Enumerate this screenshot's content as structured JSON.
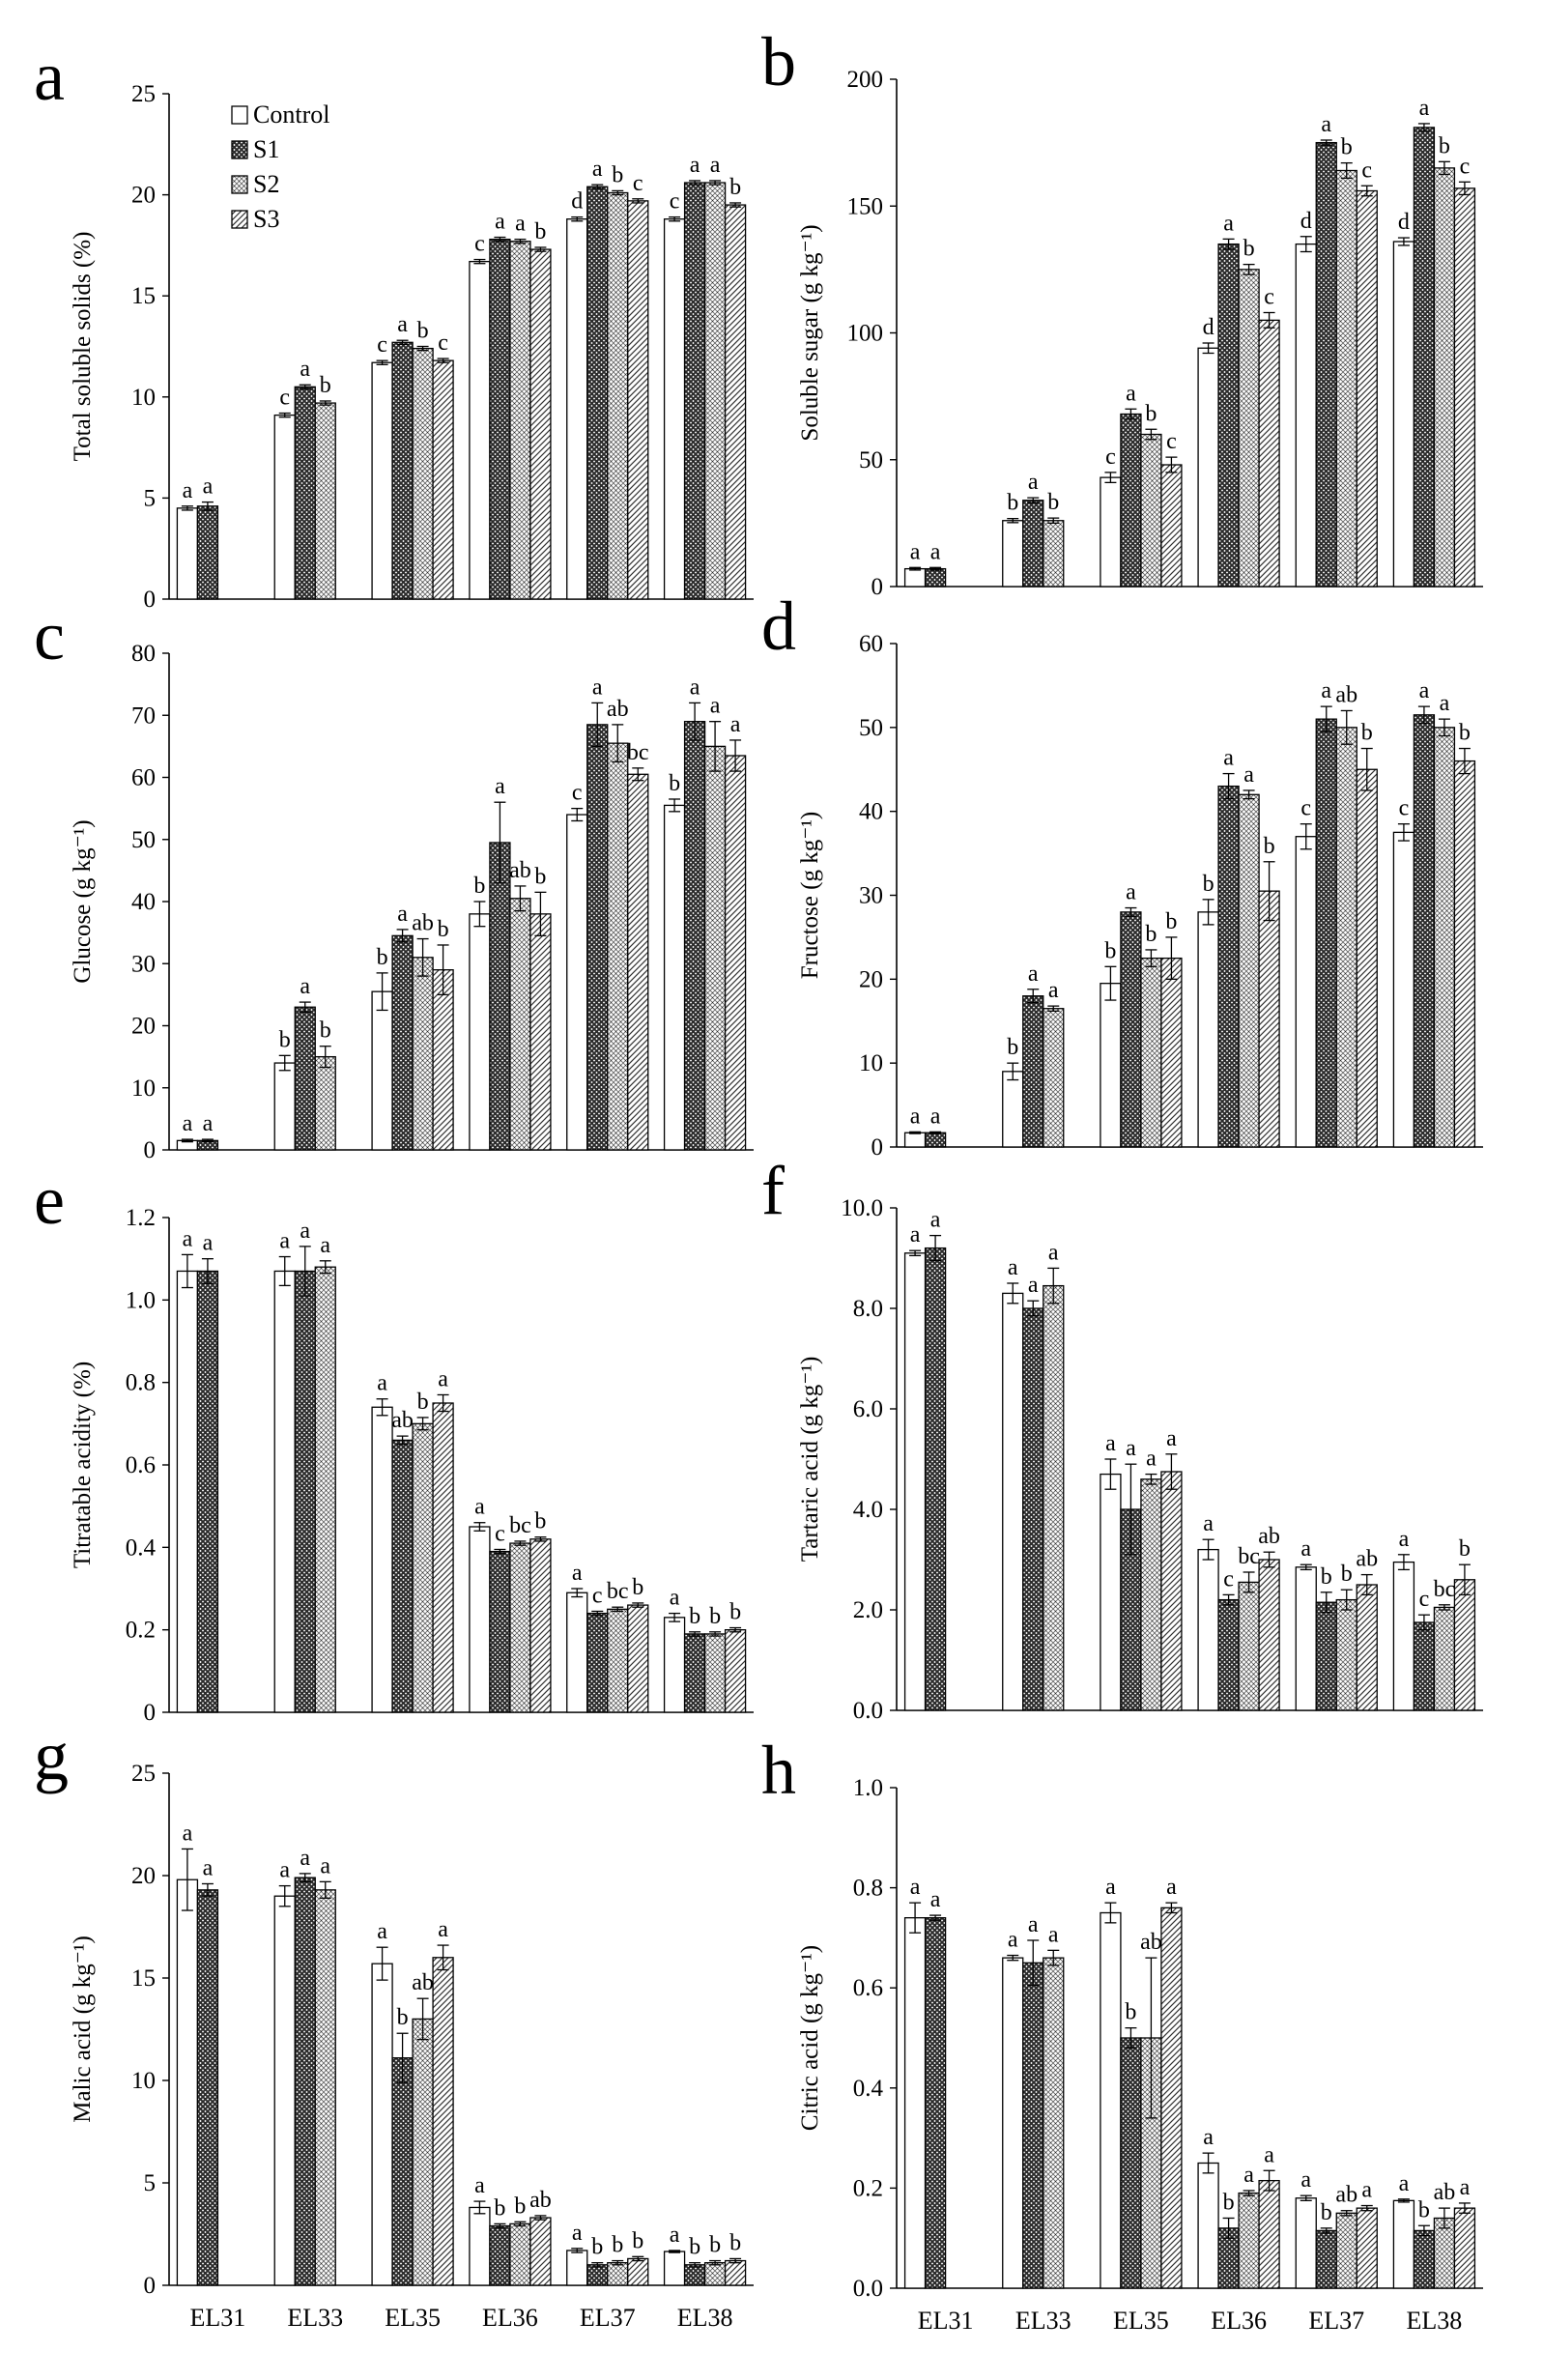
{
  "categories": [
    "EL31",
    "EL33",
    "EL35",
    "EL36",
    "EL37",
    "EL38"
  ],
  "legend": [
    "Control",
    "S1",
    "S2",
    "S3"
  ],
  "chart_data": [
    {
      "panel": "a",
      "type": "bar",
      "ylabel": "Total soluble solids (%)",
      "ylim": [
        0,
        25
      ],
      "ticks": [
        "0",
        "5",
        "10",
        "15",
        "20",
        "25"
      ],
      "legend": "top-left",
      "categories": [
        "EL31",
        "EL33",
        "EL35",
        "EL36",
        "EL37",
        "EL38"
      ],
      "series": [
        {
          "name": "Control",
          "values": [
            4.5,
            9.1,
            11.7,
            16.7,
            18.8,
            18.8
          ],
          "errors": [
            0.1,
            0.1,
            0.1,
            0.1,
            0.1,
            0.1
          ],
          "letters": [
            "a",
            "c",
            "c",
            "c",
            "d",
            "c"
          ]
        },
        {
          "name": "S1",
          "values": [
            4.6,
            10.5,
            12.7,
            17.8,
            20.4,
            20.6
          ],
          "errors": [
            0.2,
            0.1,
            0.1,
            0.1,
            0.1,
            0.1
          ],
          "letters": [
            "a",
            "a",
            "a",
            "a",
            "a",
            "a"
          ]
        },
        {
          "name": "S2",
          "values": [
            null,
            9.7,
            12.4,
            17.7,
            20.1,
            20.6
          ],
          "errors": [
            null,
            0.1,
            0.1,
            0.1,
            0.1,
            0.1
          ],
          "letters": [
            "",
            "b",
            "b",
            "a",
            "b",
            "a"
          ]
        },
        {
          "name": "S3",
          "values": [
            null,
            null,
            11.8,
            17.3,
            19.7,
            19.5
          ],
          "errors": [
            null,
            null,
            0.1,
            0.1,
            0.1,
            0.1
          ],
          "letters": [
            "",
            "",
            "c",
            "b",
            "c",
            "b"
          ]
        }
      ]
    },
    {
      "panel": "b",
      "type": "bar",
      "ylabel": "Soluble sugar (g kg⁻¹)",
      "ylim": [
        0,
        200
      ],
      "ticks": [
        "0",
        "50",
        "100",
        "150",
        "200"
      ],
      "categories": [
        "EL31",
        "EL33",
        "EL35",
        "EL36",
        "EL37",
        "EL38"
      ],
      "series": [
        {
          "name": "Control",
          "values": [
            7,
            26,
            43,
            94,
            135,
            136
          ],
          "errors": [
            0.5,
            0.8,
            2,
            2,
            3,
            1.5
          ],
          "letters": [
            "a",
            "b",
            "c",
            "d",
            "d",
            "d"
          ]
        },
        {
          "name": "S1",
          "values": [
            7,
            34,
            68,
            135,
            175,
            181
          ],
          "errors": [
            0.5,
            1,
            2,
            2,
            1,
            1.5
          ],
          "letters": [
            "a",
            "a",
            "a",
            "a",
            "a",
            "a"
          ]
        },
        {
          "name": "S2",
          "values": [
            null,
            26,
            60,
            125,
            164,
            165
          ],
          "errors": [
            null,
            1,
            2,
            2,
            3,
            2.5
          ],
          "letters": [
            "",
            "b",
            "b",
            "b",
            "b",
            "b"
          ]
        },
        {
          "name": "S3",
          "values": [
            null,
            null,
            48,
            105,
            156,
            157
          ],
          "errors": [
            null,
            null,
            3,
            3,
            2,
            2.5
          ],
          "letters": [
            "",
            "",
            "c",
            "c",
            "c",
            "c"
          ]
        }
      ]
    },
    {
      "panel": "c",
      "type": "bar",
      "ylabel": "Glucose (g kg⁻¹)",
      "ylim": [
        0,
        80
      ],
      "ticks": [
        "0",
        "10",
        "20",
        "30",
        "40",
        "50",
        "60",
        "70",
        "80"
      ],
      "categories": [
        "EL31",
        "EL33",
        "EL35",
        "EL36",
        "EL37",
        "EL38"
      ],
      "series": [
        {
          "name": "Control",
          "values": [
            1.5,
            14,
            25.5,
            38,
            54,
            55.5
          ],
          "errors": [
            0.2,
            1.2,
            3,
            2,
            1,
            1
          ],
          "letters": [
            "a",
            "b",
            "b",
            "b",
            "c",
            "b"
          ]
        },
        {
          "name": "S1",
          "values": [
            1.5,
            23,
            34.5,
            49.5,
            68.5,
            69
          ],
          "errors": [
            0.2,
            0.8,
            1,
            6.5,
            3.5,
            3
          ],
          "letters": [
            "a",
            "a",
            "a",
            "a",
            "a",
            "a"
          ]
        },
        {
          "name": "S2",
          "values": [
            null,
            15,
            31,
            40.5,
            65.5,
            65
          ],
          "errors": [
            null,
            1.7,
            3,
            2,
            3,
            4
          ],
          "letters": [
            "",
            "b",
            "ab",
            "ab",
            "ab",
            "a"
          ]
        },
        {
          "name": "S3",
          "values": [
            null,
            null,
            29,
            38,
            60.5,
            63.5
          ],
          "errors": [
            null,
            null,
            4,
            3.5,
            1,
            2.5
          ],
          "letters": [
            "",
            "",
            "b",
            "b",
            "bc",
            "a"
          ]
        }
      ]
    },
    {
      "panel": "d",
      "type": "bar",
      "ylabel": "Fructose (g kg⁻¹)",
      "ylim": [
        0,
        60
      ],
      "ticks": [
        "0",
        "10",
        "20",
        "30",
        "40",
        "50",
        "60"
      ],
      "categories": [
        "EL31",
        "EL33",
        "EL35",
        "EL36",
        "EL37",
        "EL38"
      ],
      "series": [
        {
          "name": "Control",
          "values": [
            1.7,
            9,
            19.5,
            28,
            37,
            37.5
          ],
          "errors": [
            0.1,
            1,
            2,
            1.5,
            1.5,
            1
          ],
          "letters": [
            "a",
            "b",
            "b",
            "b",
            "c",
            "c"
          ]
        },
        {
          "name": "S1",
          "values": [
            1.7,
            18,
            28,
            43,
            51,
            51.5
          ],
          "errors": [
            0.1,
            0.8,
            0.5,
            1.5,
            1.5,
            1
          ],
          "letters": [
            "a",
            "a",
            "a",
            "a",
            "a",
            "a"
          ]
        },
        {
          "name": "S2",
          "values": [
            null,
            16.5,
            22.5,
            42,
            50,
            50
          ],
          "errors": [
            null,
            0.3,
            1,
            0.5,
            2,
            1
          ],
          "letters": [
            "",
            "a",
            "b",
            "a",
            "ab",
            "a"
          ]
        },
        {
          "name": "S3",
          "values": [
            null,
            null,
            22.5,
            30.5,
            45,
            46
          ],
          "errors": [
            null,
            null,
            2.5,
            3.5,
            2.5,
            1.5
          ],
          "letters": [
            "",
            "",
            "b",
            "b",
            "b",
            "b"
          ]
        }
      ]
    },
    {
      "panel": "e",
      "type": "bar",
      "ylabel": "Titratable acidity (%)",
      "ylim": [
        0,
        1.2
      ],
      "ticks": [
        "0",
        "0.2",
        "0.4",
        "0.6",
        "0.8",
        "1.0",
        "1.2"
      ],
      "categories": [
        "EL31",
        "EL33",
        "EL35",
        "EL36",
        "EL37",
        "EL38"
      ],
      "series": [
        {
          "name": "Control",
          "values": [
            1.07,
            1.07,
            0.74,
            0.45,
            0.29,
            0.23
          ],
          "errors": [
            0.04,
            0.035,
            0.02,
            0.01,
            0.01,
            0.01
          ],
          "letters": [
            "a",
            "a",
            "a",
            "a",
            "a",
            "a"
          ]
        },
        {
          "name": "S1",
          "values": [
            1.07,
            1.07,
            0.66,
            0.39,
            0.24,
            0.19
          ],
          "errors": [
            0.03,
            0.06,
            0.01,
            0.005,
            0.005,
            0.005
          ],
          "letters": [
            "a",
            "a",
            "ab",
            "c",
            "c",
            "b"
          ]
        },
        {
          "name": "S2",
          "values": [
            null,
            1.08,
            0.7,
            0.41,
            0.25,
            0.19
          ],
          "errors": [
            null,
            0.015,
            0.015,
            0.005,
            0.005,
            0.005
          ],
          "letters": [
            "",
            "a",
            "b",
            "bc",
            "bc",
            "b"
          ]
        },
        {
          "name": "S3",
          "values": [
            null,
            null,
            0.75,
            0.42,
            0.26,
            0.2
          ],
          "errors": [
            null,
            null,
            0.02,
            0.005,
            0.005,
            0.005
          ],
          "letters": [
            "",
            "",
            "a",
            "b",
            "b",
            "b"
          ]
        }
      ]
    },
    {
      "panel": "f",
      "type": "bar",
      "ylabel": "Tartaric acid (g kg⁻¹)",
      "ylim": [
        0,
        10
      ],
      "ticks": [
        "0.0",
        "2.0",
        "4.0",
        "6.0",
        "8.0",
        "10.0"
      ],
      "categories": [
        "EL31",
        "EL33",
        "EL35",
        "EL36",
        "EL37",
        "EL38"
      ],
      "series": [
        {
          "name": "Control",
          "values": [
            9.1,
            8.3,
            4.7,
            3.2,
            2.85,
            2.95
          ],
          "errors": [
            0.05,
            0.2,
            0.3,
            0.2,
            0.05,
            0.15
          ],
          "letters": [
            "a",
            "a",
            "a",
            "a",
            "a",
            "a"
          ]
        },
        {
          "name": "S1",
          "values": [
            9.2,
            8.0,
            4.0,
            2.2,
            2.15,
            1.75
          ],
          "errors": [
            0.25,
            0.15,
            0.9,
            0.1,
            0.2,
            0.15
          ],
          "letters": [
            "a",
            "a",
            "a",
            "c",
            "b",
            "c"
          ]
        },
        {
          "name": "S2",
          "values": [
            null,
            8.45,
            4.6,
            2.55,
            2.2,
            2.05
          ],
          "errors": [
            null,
            0.35,
            0.1,
            0.2,
            0.2,
            0.05
          ],
          "letters": [
            "",
            "a",
            "a",
            "bc",
            "b",
            "bc"
          ]
        },
        {
          "name": "S3",
          "values": [
            null,
            null,
            4.75,
            3.0,
            2.5,
            2.6
          ],
          "errors": [
            null,
            null,
            0.35,
            0.15,
            0.2,
            0.3
          ],
          "letters": [
            "",
            "",
            "a",
            "ab",
            "ab",
            "b"
          ]
        }
      ]
    },
    {
      "panel": "g",
      "type": "bar",
      "ylabel": "Malic acid (g kg⁻¹)",
      "ylim": [
        0,
        25
      ],
      "ticks": [
        "0",
        "5",
        "10",
        "15",
        "20",
        "25"
      ],
      "categories": [
        "EL31",
        "EL33",
        "EL35",
        "EL36",
        "EL37",
        "EL38"
      ],
      "series": [
        {
          "name": "Control",
          "values": [
            19.8,
            19.0,
            15.7,
            3.8,
            1.7,
            1.65
          ],
          "errors": [
            1.5,
            0.5,
            0.8,
            0.3,
            0.1,
            0.05
          ],
          "letters": [
            "a",
            "a",
            "a",
            "a",
            "a",
            "a"
          ]
        },
        {
          "name": "S1",
          "values": [
            19.3,
            19.9,
            11.1,
            2.9,
            1.0,
            1.0
          ],
          "errors": [
            0.3,
            0.2,
            1.2,
            0.1,
            0.1,
            0.1
          ],
          "letters": [
            "a",
            "a",
            "b",
            "b",
            "b",
            "b"
          ]
        },
        {
          "name": "S2",
          "values": [
            null,
            19.3,
            13.0,
            3.0,
            1.1,
            1.1
          ],
          "errors": [
            null,
            0.4,
            1.0,
            0.1,
            0.1,
            0.1
          ],
          "letters": [
            "",
            "a",
            "ab",
            "b",
            "b",
            "b"
          ]
        },
        {
          "name": "S3",
          "values": [
            null,
            null,
            16.0,
            3.3,
            1.3,
            1.2
          ],
          "errors": [
            null,
            null,
            0.6,
            0.1,
            0.1,
            0.1
          ],
          "letters": [
            "",
            "",
            "a",
            "ab",
            "b",
            "b"
          ]
        }
      ]
    },
    {
      "panel": "h",
      "type": "bar",
      "ylabel": "Citric acid (g kg⁻¹)",
      "ylim": [
        0,
        1.0
      ],
      "ticks": [
        "0.0",
        "0.2",
        "0.4",
        "0.6",
        "0.8",
        "1.0"
      ],
      "categories": [
        "EL31",
        "EL33",
        "EL35",
        "EL36",
        "EL37",
        "EL38"
      ],
      "series": [
        {
          "name": "Control",
          "values": [
            0.74,
            0.66,
            0.75,
            0.25,
            0.18,
            0.175
          ],
          "errors": [
            0.03,
            0.005,
            0.02,
            0.02,
            0.005,
            0.003
          ],
          "letters": [
            "a",
            "a",
            "a",
            "a",
            "a",
            "a"
          ]
        },
        {
          "name": "S1",
          "values": [
            0.74,
            0.65,
            0.5,
            0.12,
            0.115,
            0.115
          ],
          "errors": [
            0.005,
            0.045,
            0.02,
            0.02,
            0.005,
            0.01
          ],
          "letters": [
            "a",
            "a",
            "b",
            "b",
            "b",
            "b"
          ]
        },
        {
          "name": "S2",
          "values": [
            null,
            0.66,
            0.5,
            0.19,
            0.15,
            0.14
          ],
          "errors": [
            null,
            0.015,
            0.16,
            0.005,
            0.005,
            0.02
          ],
          "letters": [
            "",
            "a",
            "ab",
            "a",
            "ab",
            "ab"
          ]
        },
        {
          "name": "S3",
          "values": [
            null,
            null,
            0.76,
            0.215,
            0.16,
            0.16
          ],
          "errors": [
            null,
            null,
            0.01,
            0.02,
            0.005,
            0.01
          ],
          "letters": [
            "",
            "",
            "a",
            "a",
            "a",
            "a"
          ]
        }
      ]
    }
  ],
  "colors": {
    "text": "#000000",
    "axis": "#000000",
    "bar_fill": "#ffffff",
    "pattern_dark": "#2b2b2b"
  }
}
